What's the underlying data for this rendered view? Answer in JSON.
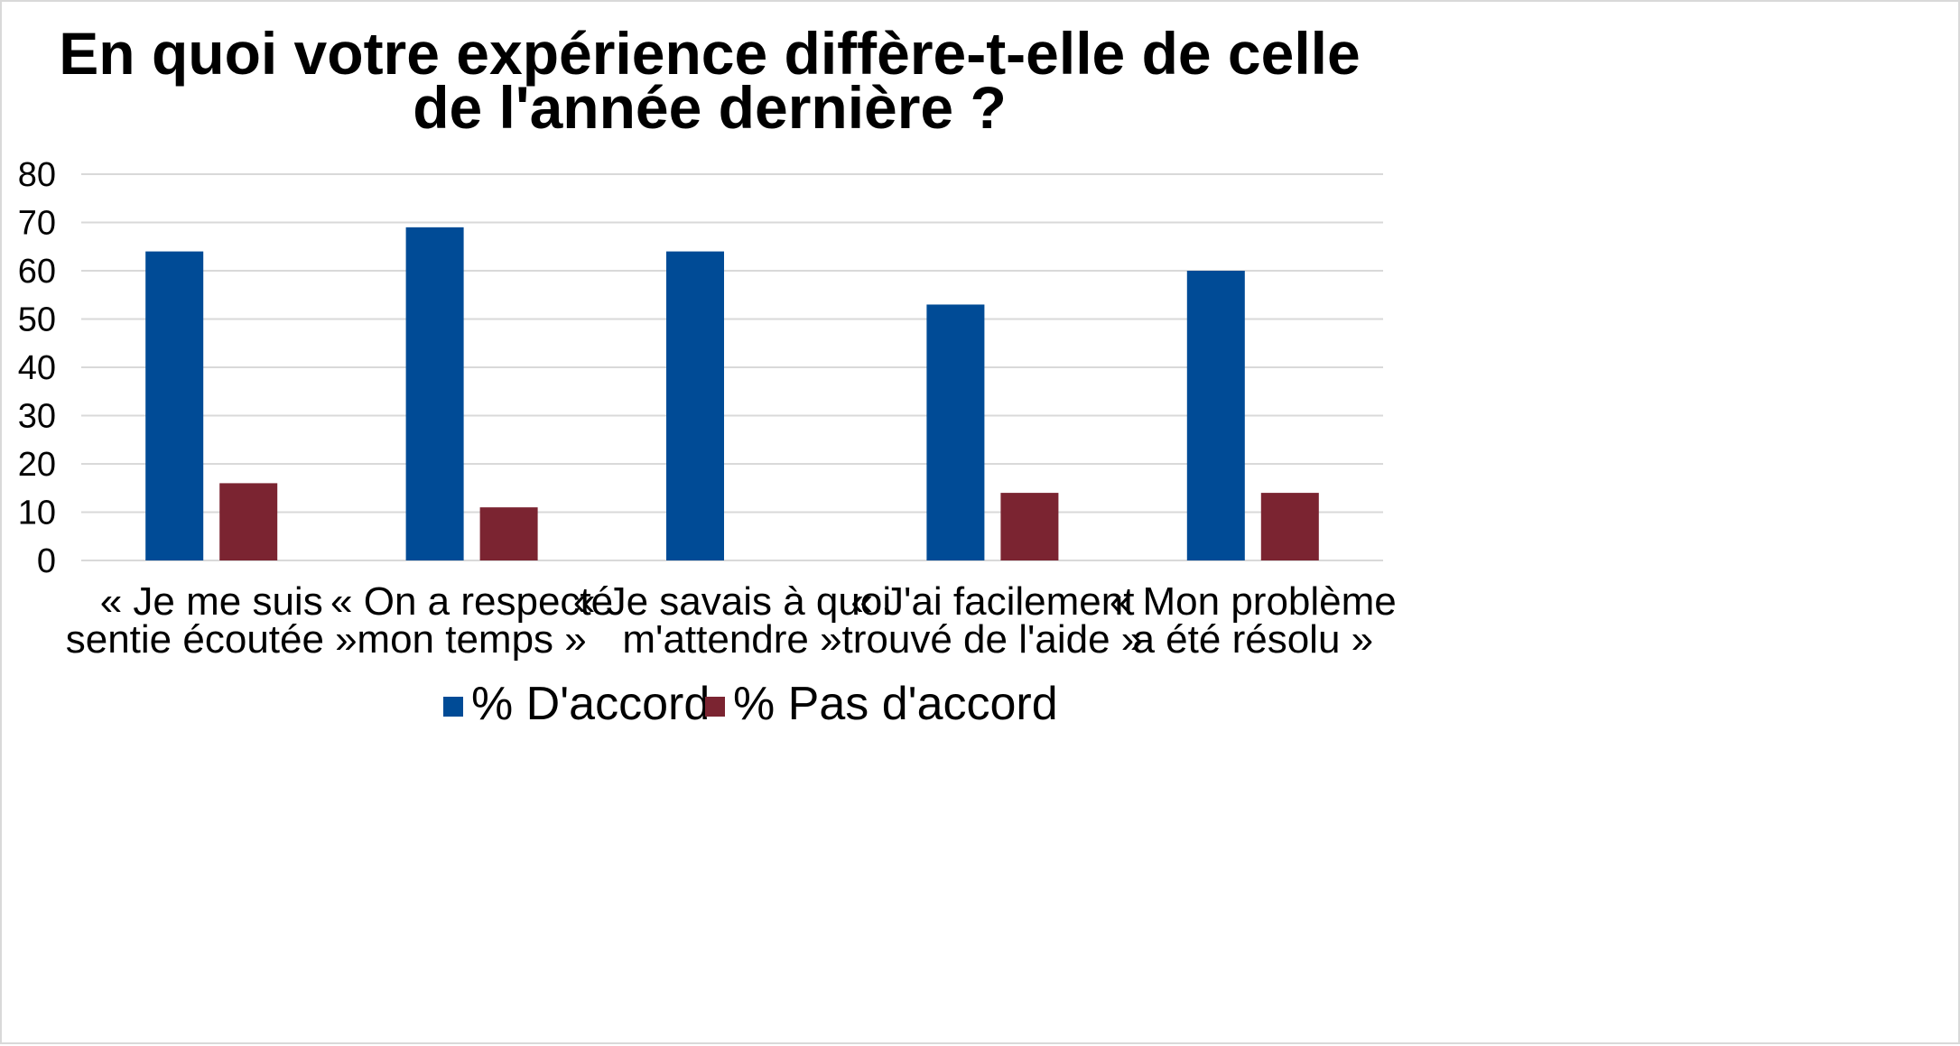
{
  "chart_data": {
    "type": "bar",
    "title": "En quoi votre expérience diffère-t-elle de celle de l'année dernière ?",
    "title_lines": [
      "En quoi votre expérience diffère-t-elle de celle",
      "de l'année dernière ?"
    ],
    "categories": [
      "« Je me suis sentie écoutée »",
      "« On a respecté mon temps »",
      "« Je savais à quoi m'attendre »",
      "« J'ai facilement trouvé de l'aide »",
      "« Mon problème a été résolu »"
    ],
    "category_lines": [
      [
        "« Je me suis",
        "sentie écoutée »"
      ],
      [
        "« On a respecté",
        "mon temps »"
      ],
      [
        "« Je savais à quoi",
        "m'attendre »"
      ],
      [
        "« J'ai facilement",
        "trouvé de l'aide »"
      ],
      [
        "« Mon problème",
        "a été résolu »"
      ]
    ],
    "series": [
      {
        "name": "% D'accord",
        "color": "#004B96",
        "values": [
          64,
          69,
          64,
          53,
          60
        ]
      },
      {
        "name": "% Pas d'accord",
        "color": "#7B2431",
        "values": [
          16,
          11,
          null,
          14,
          14
        ]
      }
    ],
    "ylim": [
      0,
      80
    ],
    "yticks": [
      0,
      10,
      20,
      30,
      40,
      50,
      60,
      70,
      80
    ],
    "xlabel": "",
    "ylabel": "",
    "grid": true,
    "legend_position": "bottom"
  }
}
